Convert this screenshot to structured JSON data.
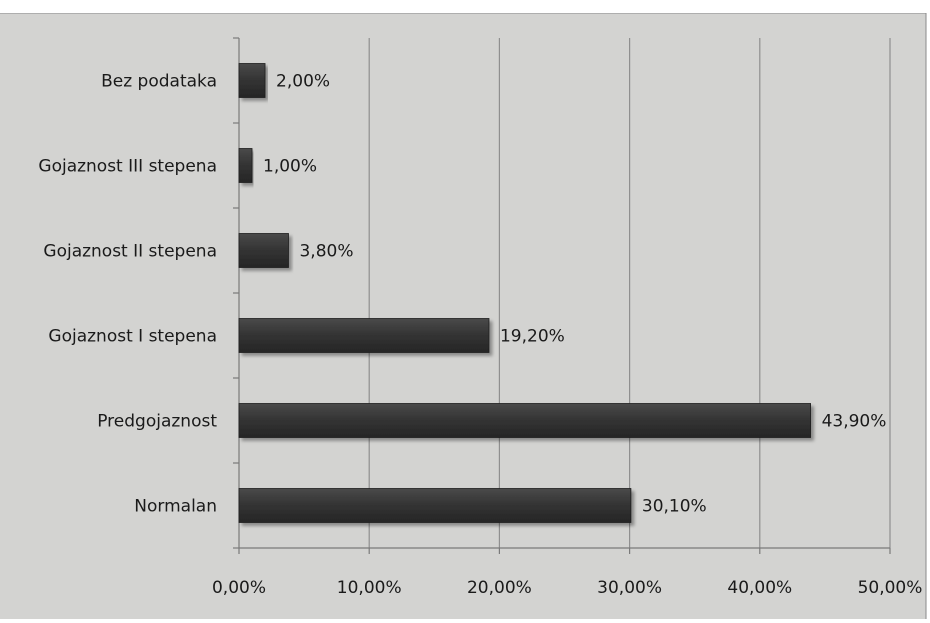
{
  "chart_data": {
    "type": "bar",
    "orientation": "horizontal",
    "categories": [
      "Normalan",
      "Predgojaznost",
      "Gojaznost I stepena",
      "Gojaznost II stepena",
      "Gojaznost III stepena",
      "Bez podataka"
    ],
    "values": [
      30.1,
      43.9,
      19.2,
      3.8,
      1.0,
      2.0
    ],
    "data_labels": [
      "30,10%",
      "43,90%",
      "19,20%",
      "3,80%",
      "1,00%",
      "2,00%"
    ],
    "xlim": [
      0,
      50
    ],
    "x_ticks": [
      0,
      10,
      20,
      30,
      40,
      50
    ],
    "x_tick_labels": [
      "0,00%",
      "10,00%",
      "20,00%",
      "30,00%",
      "40,00%",
      "50,00%"
    ],
    "title": "",
    "xlabel": "",
    "ylabel": "",
    "grid": "vertical",
    "legend": "none",
    "colors": {
      "background": "#d3d3d1",
      "bar": "#333333",
      "bar_edge": "#1e1e1e",
      "gridline": "#8f8f8f",
      "axis": "#7a7a7a"
    }
  }
}
